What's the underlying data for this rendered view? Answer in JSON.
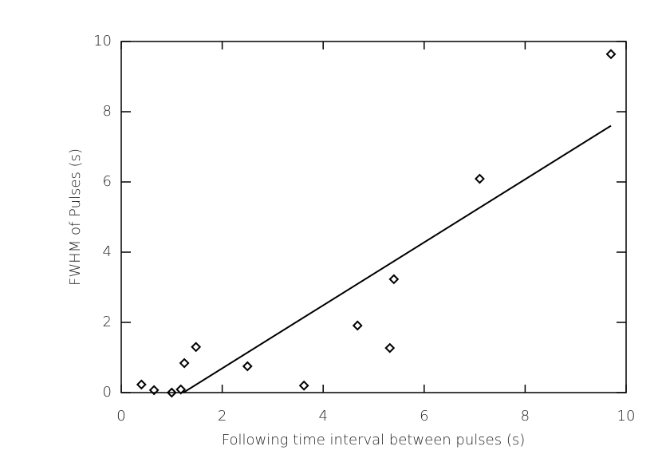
{
  "chart_data": {
    "type": "scatter",
    "x_label": "Following time interval between pulses (s)",
    "y_label": "FWHM of Pulses (s)",
    "x": [
      0.4,
      0.65,
      1.0,
      1.18,
      1.25,
      1.48,
      2.5,
      3.62,
      4.68,
      5.32,
      5.4,
      7.1,
      9.7
    ],
    "values": [
      0.23,
      0.07,
      0.0,
      0.09,
      0.84,
      1.3,
      0.75,
      0.2,
      1.91,
      1.27,
      3.23,
      6.09,
      9.64
    ],
    "color": "#000000",
    "fit_line": {
      "x": [
        1.23,
        9.7
      ],
      "values": [
        0.0,
        7.6
      ]
    },
    "xlim": [
      0,
      10
    ],
    "ylim": [
      0,
      10
    ],
    "xticks": [
      0,
      2,
      4,
      6,
      8,
      10
    ],
    "yticks": [
      0,
      2,
      4,
      6,
      8,
      10
    ]
  }
}
